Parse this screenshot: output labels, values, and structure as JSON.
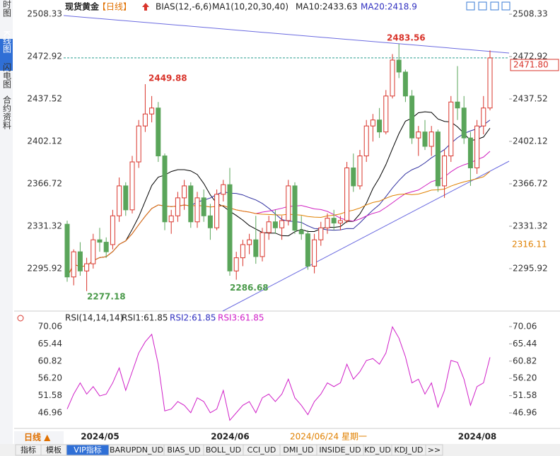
{
  "header": {
    "symbol": "现货黄金",
    "period": "【日线】",
    "bias": "BIAS(12,-6,6)",
    "ma": "MA1(10,20,30,40)",
    "ma10": "MA10:2433.63",
    "ma20": "MA20:2418.9"
  },
  "sidebar": [
    "分时图",
    "K线图",
    "闪电图",
    "合约资料"
  ],
  "rsi_header": {
    "name": "RSI(14,14,14)",
    "rsi1": "RSI1:61.85",
    "rsi2": "RSI2:61.85",
    "rsi3": "RSI3:61.85"
  },
  "period_button": "日线 ▲",
  "tabs": [
    "指标",
    "模板",
    "VIP指标",
    "BARUPDN_UD",
    "BIAS_UD",
    "BOLL_UD",
    "CCI_UD",
    "DMI_UD",
    "INSIDE_UD",
    "KD_UD",
    "KDJ_UD",
    ">>"
  ],
  "chart_data": [
    {
      "type": "candlestick",
      "categories": [
        null,
        "2024/05",
        null,
        null,
        null,
        null,
        null,
        null,
        null,
        null,
        null,
        null,
        null,
        null,
        null,
        null,
        null,
        null,
        null,
        null,
        null,
        "2024/06",
        null,
        null,
        null,
        null,
        null,
        null,
        null,
        null,
        null,
        null,
        null,
        null,
        null,
        null,
        null,
        null,
        null,
        null,
        null,
        null,
        null,
        null,
        null,
        null,
        null,
        null,
        null,
        null,
        null,
        null,
        null,
        null,
        null,
        null,
        null,
        null,
        null,
        "2024/08",
        null,
        null,
        null,
        null,
        null,
        null
      ],
      "open": [
        2333,
        2289,
        2310,
        2294,
        2300,
        2320,
        2318,
        2316,
        2340,
        2365,
        2345,
        2385,
        2415,
        2425,
        2430,
        2390,
        2335,
        2340,
        2355,
        2365,
        2335,
        2355,
        2340,
        2330,
        2358,
        2366,
        2294,
        2305,
        2316,
        2320,
        2306,
        2326,
        2335,
        2330,
        2336,
        2365,
        2328,
        2325,
        2298,
        2320,
        2330,
        2338,
        2334,
        2336,
        2380,
        2365,
        2390,
        2415,
        2420,
        2410,
        2440,
        2470,
        2460,
        2440,
        2405,
        2410,
        2398,
        2410,
        2365,
        2390,
        2435,
        2430,
        2405,
        2380,
        2415,
        2430
      ],
      "high": [
        2336,
        2312,
        2318,
        2305,
        2325,
        2330,
        2322,
        2345,
        2372,
        2368,
        2390,
        2420,
        2449.88,
        2440,
        2435,
        2392,
        2345,
        2360,
        2370,
        2368,
        2360,
        2362,
        2350,
        2362,
        2370,
        2380,
        2310,
        2320,
        2325,
        2340,
        2330,
        2340,
        2345,
        2340,
        2370,
        2368,
        2340,
        2328,
        2325,
        2335,
        2342,
        2345,
        2340,
        2385,
        2392,
        2395,
        2420,
        2425,
        2430,
        2445,
        2475,
        2483.56,
        2462,
        2445,
        2415,
        2420,
        2415,
        2412,
        2395,
        2440,
        2465,
        2440,
        2410,
        2420,
        2440,
        2478
      ],
      "low": [
        2285,
        2282,
        2290,
        2277.18,
        2296,
        2310,
        2305,
        2312,
        2335,
        2340,
        2342,
        2380,
        2410,
        2418,
        2385,
        2328,
        2325,
        2335,
        2345,
        2330,
        2330,
        2335,
        2320,
        2328,
        2352,
        2290,
        2286.68,
        2298,
        2308,
        2300,
        2302,
        2320,
        2325,
        2320,
        2332,
        2325,
        2320,
        2295,
        2292,
        2315,
        2325,
        2328,
        2328,
        2334,
        2360,
        2362,
        2385,
        2402,
        2405,
        2408,
        2438,
        2455,
        2435,
        2400,
        2390,
        2395,
        2390,
        2360,
        2355,
        2385,
        2420,
        2400,
        2365,
        2375,
        2408,
        2428
      ],
      "close": [
        2289,
        2310,
        2294,
        2300,
        2320,
        2318,
        2310,
        2340,
        2365,
        2345,
        2385,
        2415,
        2425,
        2430,
        2390,
        2335,
        2340,
        2355,
        2365,
        2335,
        2355,
        2340,
        2330,
        2358,
        2366,
        2294,
        2305,
        2316,
        2320,
        2306,
        2326,
        2335,
        2330,
        2336,
        2365,
        2328,
        2325,
        2298,
        2320,
        2330,
        2338,
        2334,
        2336,
        2380,
        2365,
        2390,
        2415,
        2420,
        2410,
        2440,
        2470,
        2460,
        2440,
        2405,
        2410,
        2398,
        2410,
        2365,
        2390,
        2435,
        2430,
        2405,
        2380,
        2415,
        2430,
        2471.8
      ],
      "up_color": "#d9342b",
      "down_color": "#5aa55a",
      "ylim": [
        2260.52,
        2508.33
      ],
      "yticks": [
        2508.33,
        2472.92,
        2437.52,
        2402.12,
        2366.72,
        2331.32,
        2295.92
      ],
      "annotations": [
        {
          "value": 2449.88,
          "color": "#d9342b"
        },
        {
          "value": 2277.18,
          "color": "#4a9a4a"
        },
        {
          "value": 2286.68,
          "color": "#4a9a4a"
        },
        {
          "value": 2483.56,
          "color": "#d9342b"
        }
      ],
      "last": {
        "value": 2471.8,
        "label": "2471.80"
      },
      "crosshair": {
        "value": 2316.11,
        "date": "2024/06/24 星期一"
      }
    },
    {
      "type": "line",
      "series": [
        {
          "name": "RSI3",
          "color": "#d020c8",
          "values": [
            48,
            52,
            55,
            52,
            54,
            51.5,
            52,
            55,
            59,
            53,
            58,
            63,
            66,
            68,
            60,
            47.5,
            48,
            50,
            49,
            47,
            51,
            50,
            47,
            48,
            53,
            45,
            47,
            49,
            50,
            47,
            51,
            52,
            50,
            52,
            56,
            51,
            49,
            46.5,
            50,
            52,
            55,
            54,
            55,
            60,
            56,
            58,
            61,
            61.5,
            60,
            63,
            70,
            67,
            62,
            55,
            56,
            52,
            55,
            48.5,
            53,
            61,
            60.5,
            56,
            49,
            54,
            55,
            61.85
          ]
        }
      ],
      "ylim": [
        43,
        70.06
      ],
      "yticks": [
        70.06,
        65.44,
        60.82,
        {
          "value": 56.2,
          "label": "56.20"
        },
        51.58,
        46.96
      ]
    }
  ]
}
